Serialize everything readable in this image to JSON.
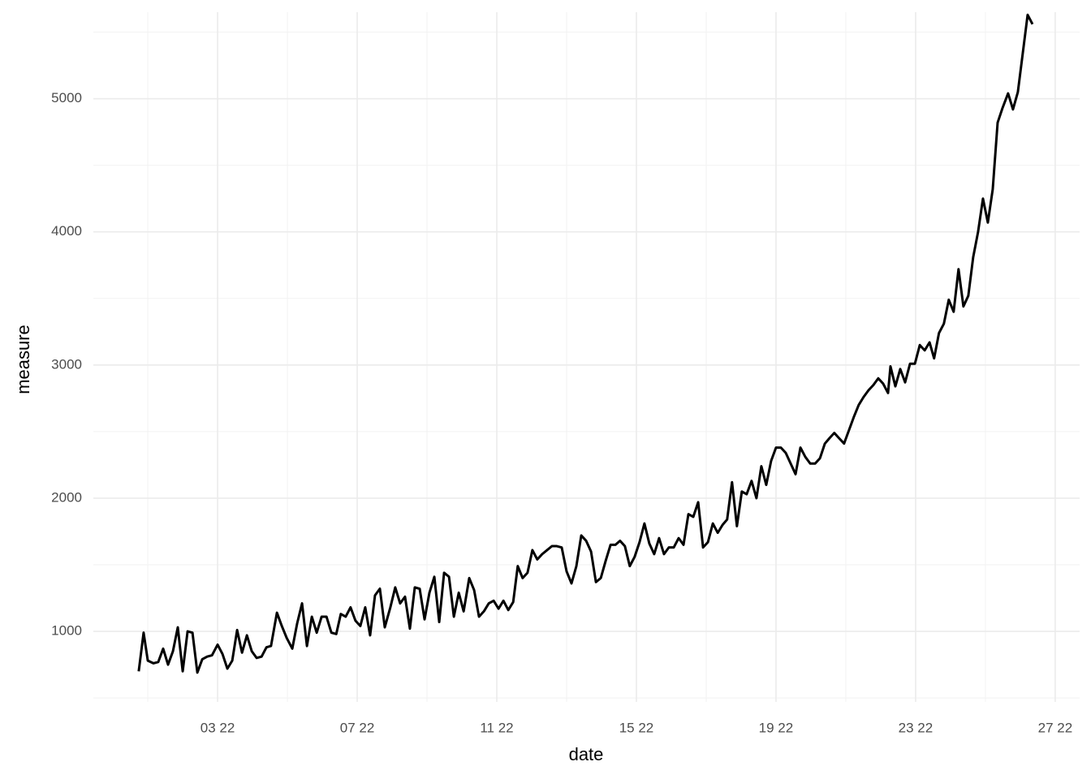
{
  "chart_data": {
    "type": "line",
    "x_label": "date",
    "y_label": "measure",
    "xlim": [
      -0.56,
      27.7
    ],
    "ylim": [
      470,
      5650
    ],
    "xticks": [
      {
        "value": 3,
        "label": "03 22"
      },
      {
        "value": 7,
        "label": "07 22"
      },
      {
        "value": 11,
        "label": "11 22"
      },
      {
        "value": 15,
        "label": "15 22"
      },
      {
        "value": 19,
        "label": "19 22"
      },
      {
        "value": 23,
        "label": "23 22"
      },
      {
        "value": 27,
        "label": "27 22"
      }
    ],
    "xminorticks": [
      1,
      5,
      9,
      13,
      17,
      21,
      25
    ],
    "yticks": [
      1000,
      2000,
      3000,
      4000,
      5000
    ],
    "yminorticks": [
      500,
      1500,
      2500,
      3500,
      4500,
      5500
    ],
    "grid": true,
    "series": [
      {
        "color": "#000000",
        "x": [
          0.74,
          0.88,
          1.0,
          1.16,
          1.3,
          1.44,
          1.58,
          1.72,
          1.86,
          2.0,
          2.14,
          2.28,
          2.42,
          2.56,
          2.7,
          2.84,
          3.0,
          3.14,
          3.28,
          3.42,
          3.56,
          3.7,
          3.84,
          3.98,
          4.12,
          4.26,
          4.4,
          4.53,
          4.7,
          4.84,
          4.98,
          5.14,
          5.28,
          5.42,
          5.56,
          5.7,
          5.84,
          5.98,
          6.12,
          6.26,
          6.4,
          6.53,
          6.67,
          6.81,
          6.95,
          7.09,
          7.23,
          7.37,
          7.51,
          7.65,
          7.79,
          7.95,
          8.09,
          8.23,
          8.37,
          8.51,
          8.65,
          8.79,
          8.93,
          9.07,
          9.21,
          9.35,
          9.49,
          9.63,
          9.77,
          9.91,
          10.05,
          10.21,
          10.35,
          10.49,
          10.63,
          10.77,
          10.91,
          11.05,
          11.19,
          11.33,
          11.47,
          11.6,
          11.74,
          11.88,
          12.02,
          12.16,
          12.3,
          12.44,
          12.58,
          12.72,
          12.86,
          13.0,
          13.14,
          13.28,
          13.42,
          13.56,
          13.7,
          13.84,
          13.98,
          14.12,
          14.26,
          14.4,
          14.53,
          14.67,
          14.81,
          14.95,
          15.09,
          15.23,
          15.37,
          15.51,
          15.65,
          15.79,
          15.93,
          16.07,
          16.21,
          16.35,
          16.49,
          16.63,
          16.77,
          16.91,
          17.05,
          17.19,
          17.33,
          17.47,
          17.6,
          17.74,
          17.88,
          18.02,
          18.16,
          18.3,
          18.44,
          18.58,
          18.72,
          18.86,
          19.0,
          19.14,
          19.28,
          19.42,
          19.56,
          19.7,
          19.84,
          19.98,
          20.12,
          20.26,
          20.4,
          20.53,
          20.67,
          20.81,
          20.95,
          21.09,
          21.23,
          21.37,
          21.51,
          21.65,
          21.79,
          21.93,
          22.07,
          22.21,
          22.28,
          22.42,
          22.56,
          22.7,
          22.84,
          22.98,
          23.12,
          23.26,
          23.4,
          23.53,
          23.67,
          23.81,
          23.95,
          24.09,
          24.23,
          24.37,
          24.51,
          24.65,
          24.79,
          24.93,
          25.07,
          25.21,
          25.35,
          25.49,
          25.65,
          25.79,
          25.93,
          26.07,
          26.21,
          26.35
        ],
        "values": [
          700,
          990,
          780,
          760,
          770,
          870,
          750,
          850,
          1030,
          700,
          1000,
          990,
          690,
          790,
          810,
          820,
          900,
          830,
          720,
          780,
          1010,
          840,
          970,
          850,
          800,
          810,
          880,
          890,
          1140,
          1040,
          950,
          870,
          1060,
          1210,
          890,
          1110,
          990,
          1110,
          1110,
          990,
          980,
          1130,
          1110,
          1180,
          1080,
          1040,
          1180,
          970,
          1270,
          1320,
          1030,
          1180,
          1330,
          1210,
          1260,
          1020,
          1330,
          1320,
          1090,
          1290,
          1410,
          1070,
          1440,
          1410,
          1110,
          1290,
          1150,
          1400,
          1310,
          1110,
          1150,
          1210,
          1230,
          1170,
          1230,
          1160,
          1220,
          1490,
          1400,
          1440,
          1610,
          1540,
          1580,
          1610,
          1640,
          1640,
          1630,
          1450,
          1360,
          1490,
          1720,
          1680,
          1600,
          1370,
          1400,
          1530,
          1650,
          1650,
          1680,
          1640,
          1490,
          1560,
          1670,
          1810,
          1660,
          1580,
          1700,
          1580,
          1630,
          1630,
          1700,
          1650,
          1880,
          1860,
          1970,
          1630,
          1670,
          1810,
          1740,
          1800,
          1840,
          2120,
          1790,
          2050,
          2030,
          2130,
          2000,
          2240,
          2100,
          2280,
          2380,
          2380,
          2340,
          2260,
          2180,
          2380,
          2310,
          2260,
          2260,
          2300,
          2410,
          2450,
          2490,
          2450,
          2410,
          2510,
          2610,
          2700,
          2760,
          2810,
          2850,
          2900,
          2860,
          2790,
          2990,
          2840,
          2970,
          2870,
          3010,
          3010,
          3150,
          3110,
          3170,
          3050,
          3240,
          3310,
          3490,
          3400,
          3720,
          3440,
          3520,
          3810,
          4000,
          4250,
          4070,
          4320,
          4820,
          4930,
          5040,
          4920,
          5050,
          5340,
          5630,
          5560
        ]
      }
    ]
  }
}
